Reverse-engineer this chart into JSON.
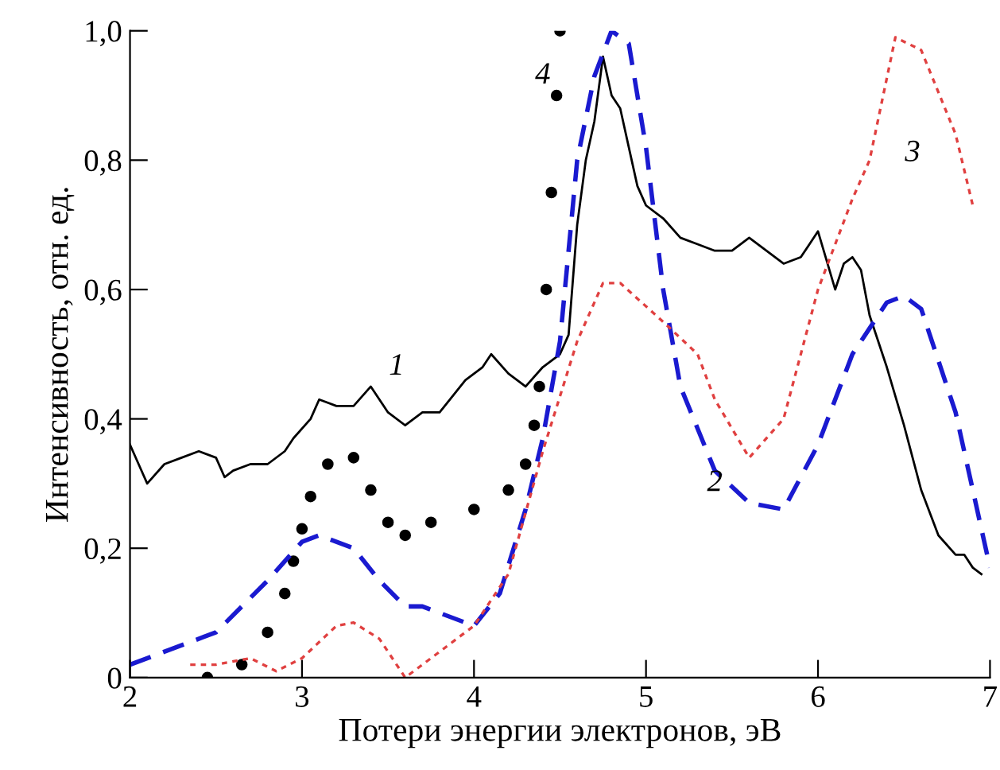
{
  "chart_data": {
    "type": "line",
    "xlabel": "Потери энергии электронов, эВ",
    "ylabel": "Интенсивность, отн. ед.",
    "xlim": [
      2,
      7
    ],
    "xticks": [
      2,
      3,
      4,
      5,
      6,
      7
    ],
    "ylim": [
      0,
      1
    ],
    "yticks": [
      {
        "value": 0,
        "label": "0"
      },
      {
        "value": 0.2,
        "label": "0,2"
      },
      {
        "value": 0.4,
        "label": "0,4"
      },
      {
        "value": 0.6,
        "label": "0,6"
      },
      {
        "value": 0.8,
        "label": "0,8"
      },
      {
        "value": 1,
        "label": "1,0"
      }
    ],
    "grid": false,
    "legend": false,
    "series": [
      {
        "name": "1",
        "color": "#000000",
        "line_style": "solid",
        "x": [
          2.0,
          2.05,
          2.1,
          2.2,
          2.3,
          2.4,
          2.5,
          2.55,
          2.6,
          2.7,
          2.8,
          2.9,
          2.95,
          3.05,
          3.1,
          3.2,
          3.3,
          3.4,
          3.5,
          3.6,
          3.7,
          3.8,
          3.95,
          4.05,
          4.1,
          4.2,
          4.3,
          4.4,
          4.5,
          4.55,
          4.6,
          4.65,
          4.7,
          4.75,
          4.8,
          4.85,
          4.9,
          4.95,
          5.0,
          5.1,
          5.2,
          5.3,
          5.4,
          5.5,
          5.6,
          5.7,
          5.8,
          5.9,
          6.0,
          6.1,
          6.15,
          6.2,
          6.25,
          6.3,
          6.4,
          6.5,
          6.6,
          6.7,
          6.8,
          6.85,
          6.9,
          6.95
        ],
        "values": [
          0.36,
          0.33,
          0.3,
          0.33,
          0.34,
          0.35,
          0.34,
          0.31,
          0.32,
          0.33,
          0.33,
          0.35,
          0.37,
          0.4,
          0.43,
          0.42,
          0.42,
          0.45,
          0.41,
          0.39,
          0.41,
          0.41,
          0.46,
          0.48,
          0.5,
          0.47,
          0.45,
          0.48,
          0.5,
          0.53,
          0.7,
          0.8,
          0.86,
          0.96,
          0.9,
          0.88,
          0.82,
          0.76,
          0.73,
          0.71,
          0.68,
          0.67,
          0.66,
          0.66,
          0.68,
          0.66,
          0.64,
          0.65,
          0.69,
          0.6,
          0.64,
          0.65,
          0.63,
          0.56,
          0.48,
          0.39,
          0.29,
          0.22,
          0.19,
          0.19,
          0.17,
          0.16
        ]
      },
      {
        "name": "2",
        "color": "#1a1ad0",
        "line_style": "dashed",
        "x": [
          2.0,
          2.5,
          2.8,
          3.0,
          3.1,
          3.3,
          3.45,
          3.6,
          3.7,
          4.0,
          4.15,
          4.3,
          4.4,
          4.5,
          4.6,
          4.7,
          4.8,
          4.9,
          5.0,
          5.1,
          5.2,
          5.4,
          5.6,
          5.8,
          6.0,
          6.2,
          6.4,
          6.5,
          6.6,
          6.8,
          6.9,
          7.0
        ],
        "values": [
          0.02,
          0.07,
          0.15,
          0.21,
          0.22,
          0.2,
          0.15,
          0.11,
          0.11,
          0.08,
          0.13,
          0.26,
          0.37,
          0.52,
          0.8,
          0.93,
          1.0,
          0.98,
          0.82,
          0.6,
          0.45,
          0.32,
          0.27,
          0.26,
          0.36,
          0.5,
          0.58,
          0.59,
          0.57,
          0.41,
          0.29,
          0.17
        ]
      },
      {
        "name": "3",
        "color": "#e04040",
        "line_style": "dotted",
        "x": [
          2.35,
          2.5,
          2.7,
          2.85,
          3.0,
          3.2,
          3.3,
          3.45,
          3.6,
          3.7,
          4.0,
          4.2,
          4.4,
          4.6,
          4.75,
          4.85,
          5.1,
          5.3,
          5.4,
          5.6,
          5.8,
          6.0,
          6.2,
          6.3,
          6.45,
          6.6,
          6.8,
          6.9
        ],
        "values": [
          0.02,
          0.02,
          0.03,
          0.01,
          0.03,
          0.08,
          0.085,
          0.06,
          0.0,
          0.02,
          0.08,
          0.16,
          0.35,
          0.52,
          0.61,
          0.61,
          0.55,
          0.5,
          0.43,
          0.34,
          0.4,
          0.6,
          0.74,
          0.8,
          0.99,
          0.97,
          0.84,
          0.73
        ]
      },
      {
        "name": "4",
        "type": "scatter",
        "color": "#000000",
        "marker": "circle",
        "x": [
          2.45,
          2.65,
          2.8,
          2.9,
          2.95,
          3.0,
          3.05,
          3.15,
          3.3,
          3.4,
          3.5,
          3.6,
          3.75,
          4.0,
          4.2,
          4.3,
          4.35,
          4.38,
          4.42,
          4.45,
          4.48,
          4.5
        ],
        "values": [
          0.0,
          0.02,
          0.07,
          0.13,
          0.18,
          0.23,
          0.28,
          0.33,
          0.34,
          0.29,
          0.24,
          0.22,
          0.24,
          0.26,
          0.29,
          0.33,
          0.39,
          0.45,
          0.6,
          0.75,
          0.9,
          1.0
        ]
      }
    ]
  }
}
